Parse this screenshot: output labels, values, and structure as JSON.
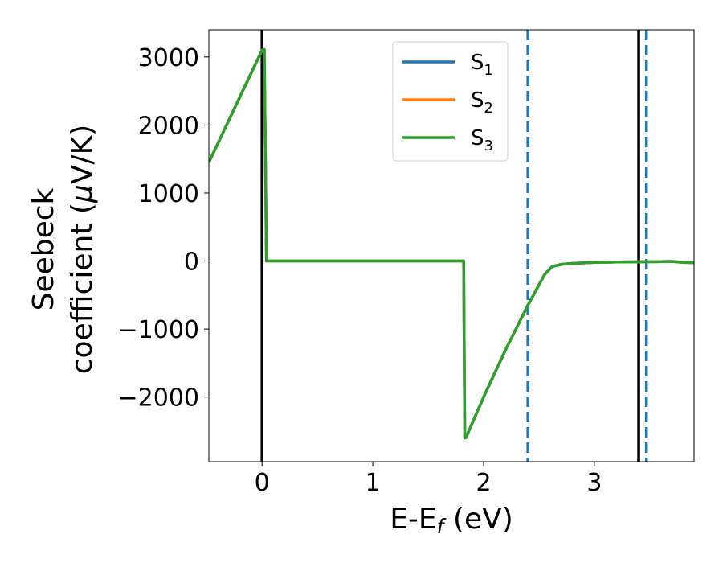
{
  "chart_data": {
    "type": "line",
    "xlabel": {
      "main": "E-E",
      "sub": "f",
      "suffix": " (eV)"
    },
    "ylabel": {
      "line1": "Seebeck",
      "line2_prefix": "coefficient  (",
      "mu": "μ",
      "line2_suffix": "V/K)"
    },
    "xlim": [
      -0.48,
      3.9
    ],
    "ylim": [
      -2950,
      3400
    ],
    "xticks": [
      0,
      1,
      2,
      3
    ],
    "xtick_labels": [
      "0",
      "1",
      "2",
      "3"
    ],
    "yticks": [
      3000,
      2000,
      1000,
      0,
      -1000,
      -2000
    ],
    "ytick_labels": [
      "3000",
      "2000",
      "1000",
      "0",
      "−1000",
      "−2000"
    ],
    "grid": false,
    "legend_position": "top-center",
    "series": [
      {
        "name": "S",
        "sub": "1",
        "color": "#1f77b4",
        "x": [
          -0.48,
          0.0,
          0.02,
          0.04,
          1.82,
          1.83,
          1.84,
          2.0,
          2.2,
          2.4,
          2.55,
          2.62,
          2.7,
          2.8,
          3.0,
          3.2,
          3.4,
          3.55,
          3.7,
          3.8,
          3.9
        ],
        "y": [
          1450,
          3100,
          3110,
          0,
          0,
          -2600,
          -2600,
          -2000,
          -1300,
          -650,
          -200,
          -80,
          -50,
          -35,
          -20,
          -15,
          -12,
          -10,
          -5,
          -20,
          -25
        ]
      },
      {
        "name": "S",
        "sub": "2",
        "color": "#ff7f0e",
        "x": [
          -0.48,
          0.0,
          0.02,
          0.04,
          1.82,
          1.83,
          1.84,
          2.0,
          2.2,
          2.4,
          2.55,
          2.62,
          2.7,
          2.8,
          3.0,
          3.2,
          3.4,
          3.55,
          3.7,
          3.8,
          3.9
        ],
        "y": [
          1450,
          3100,
          3110,
          0,
          0,
          -2600,
          -2600,
          -2000,
          -1300,
          -650,
          -200,
          -80,
          -50,
          -35,
          -20,
          -15,
          -12,
          -10,
          -5,
          -20,
          -25
        ]
      },
      {
        "name": "S",
        "sub": "3",
        "color": "#2ca02c",
        "x": [
          -0.48,
          0.0,
          0.02,
          0.04,
          1.82,
          1.83,
          1.84,
          2.0,
          2.2,
          2.4,
          2.55,
          2.62,
          2.7,
          2.8,
          3.0,
          3.2,
          3.4,
          3.55,
          3.7,
          3.8,
          3.9
        ],
        "y": [
          1450,
          3100,
          3110,
          0,
          0,
          -2600,
          -2600,
          -2000,
          -1300,
          -650,
          -200,
          -80,
          -50,
          -35,
          -20,
          -15,
          -12,
          -10,
          -5,
          -20,
          -25
        ]
      }
    ],
    "vertical_lines": [
      {
        "x": 0.0,
        "color": "#000000",
        "style": "solid"
      },
      {
        "x": 3.4,
        "color": "#000000",
        "style": "solid"
      },
      {
        "x": 2.4,
        "color": "#1f77b4",
        "style": "dashed"
      },
      {
        "x": 3.47,
        "color": "#1f77b4",
        "style": "dashed"
      }
    ]
  }
}
